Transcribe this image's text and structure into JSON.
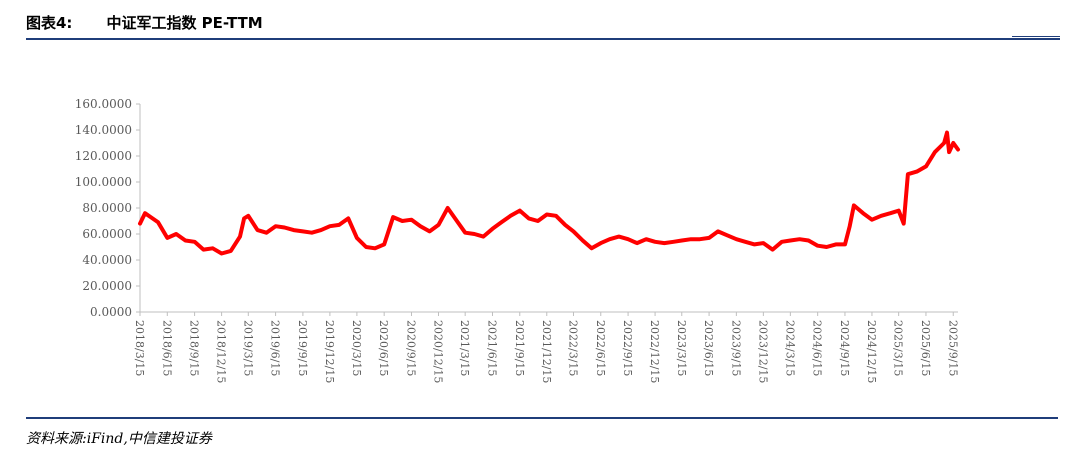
{
  "header": {
    "figure_label": "图表4:",
    "title": "中证军工指数 PE-TTM"
  },
  "footer": {
    "source": "资料来源:iFind,中信建投证券"
  },
  "colors": {
    "series": "#ff0000",
    "axis": "#bfbfbf",
    "rule": "#1f3d7a",
    "tick_text": "#595959"
  },
  "chart_data": {
    "type": "line",
    "title": "",
    "xlabel": "",
    "ylabel": "",
    "ylim": [
      0,
      160
    ],
    "y_ticks": [
      "0.0000",
      "20.0000",
      "40.0000",
      "60.0000",
      "80.0000",
      "100.0000",
      "120.0000",
      "140.0000",
      "160.0000"
    ],
    "x_ticks": [
      "2018/3/15",
      "2018/6/15",
      "2018/9/15",
      "2018/12/15",
      "2019/3/15",
      "2019/6/15",
      "2019/9/15",
      "2019/12/15",
      "2020/3/15",
      "2020/6/15",
      "2020/9/15",
      "2020/12/15",
      "2021/3/15",
      "2021/6/15",
      "2021/9/15",
      "2021/12/15",
      "2022/3/15",
      "2022/6/15",
      "2022/9/15",
      "2022/12/15",
      "2023/3/15",
      "2023/6/15",
      "2023/9/15",
      "2023/12/15",
      "2024/3/15",
      "2024/6/15",
      "2024/9/15",
      "2024/12/15",
      "2025/3/15",
      "2025/6/15",
      "2025/9/15"
    ],
    "grid": false,
    "legend": "none",
    "series": [
      {
        "x": [
          "2018/3/15",
          "2018/4/1",
          "2018/4/20",
          "2018/5/15",
          "2018/6/15",
          "2018/7/15",
          "2018/8/15",
          "2018/9/15",
          "2018/10/15",
          "2018/11/15",
          "2018/12/15",
          "2019/1/15",
          "2019/2/15",
          "2019/3/1",
          "2019/3/15",
          "2019/4/15",
          "2019/5/15",
          "2019/6/15",
          "2019/7/15",
          "2019/8/15",
          "2019/9/15",
          "2019/10/15",
          "2019/11/15",
          "2019/12/15",
          "2020/1/15",
          "2020/2/15",
          "2020/3/15",
          "2020/4/15",
          "2020/5/15",
          "2020/6/15",
          "2020/7/15",
          "2020/8/15",
          "2020/9/15",
          "2020/10/15",
          "2020/11/15",
          "2020/12/15",
          "2021/1/15",
          "2021/2/15",
          "2021/3/15",
          "2021/4/15",
          "2021/5/15",
          "2021/6/15",
          "2021/7/15",
          "2021/8/15",
          "2021/9/15",
          "2021/10/15",
          "2021/11/15",
          "2021/12/15",
          "2022/1/15",
          "2022/2/15",
          "2022/3/15",
          "2022/4/15",
          "2022/5/15",
          "2022/6/15",
          "2022/7/15",
          "2022/8/15",
          "2022/9/15",
          "2022/10/15",
          "2022/11/15",
          "2022/12/15",
          "2023/1/15",
          "2023/2/15",
          "2023/3/15",
          "2023/4/15",
          "2023/5/15",
          "2023/6/15",
          "2023/7/15",
          "2023/8/15",
          "2023/9/15",
          "2023/10/15",
          "2023/11/15",
          "2023/12/15",
          "2024/1/15",
          "2024/2/15",
          "2024/3/15",
          "2024/4/15",
          "2024/5/15",
          "2024/6/15",
          "2024/7/15",
          "2024/8/15",
          "2024/9/15",
          "2024/10/1",
          "2024/10/15",
          "2024/11/15",
          "2024/12/15",
          "2025/1/15",
          "2025/2/15",
          "2025/3/15",
          "2025/4/1",
          "2025/4/15",
          "2025/5/15",
          "2025/6/15",
          "2025/7/15",
          "2025/8/15",
          "2025/8/25",
          "2025/9/1",
          "2025/9/15",
          "2025/10/1"
        ],
        "values": [
          68,
          76,
          73,
          69,
          57,
          60,
          55,
          54,
          48,
          49,
          45,
          47,
          58,
          72,
          74,
          63,
          61,
          66,
          65,
          63,
          62,
          61,
          63,
          66,
          67,
          72,
          57,
          50,
          49,
          52,
          73,
          70,
          71,
          66,
          62,
          67,
          80,
          70,
          61,
          60,
          58,
          64,
          69,
          74,
          78,
          72,
          70,
          75,
          74,
          67,
          62,
          55,
          49,
          53,
          56,
          58,
          56,
          53,
          56,
          54,
          53,
          54,
          55,
          56,
          56,
          57,
          62,
          59,
          56,
          54,
          52,
          53,
          48,
          54,
          55,
          56,
          55,
          51,
          50,
          52,
          52,
          66,
          82,
          76,
          71,
          74,
          76,
          78,
          68,
          106,
          108,
          112,
          123,
          130,
          138,
          123,
          130,
          125
        ]
      }
    ]
  }
}
